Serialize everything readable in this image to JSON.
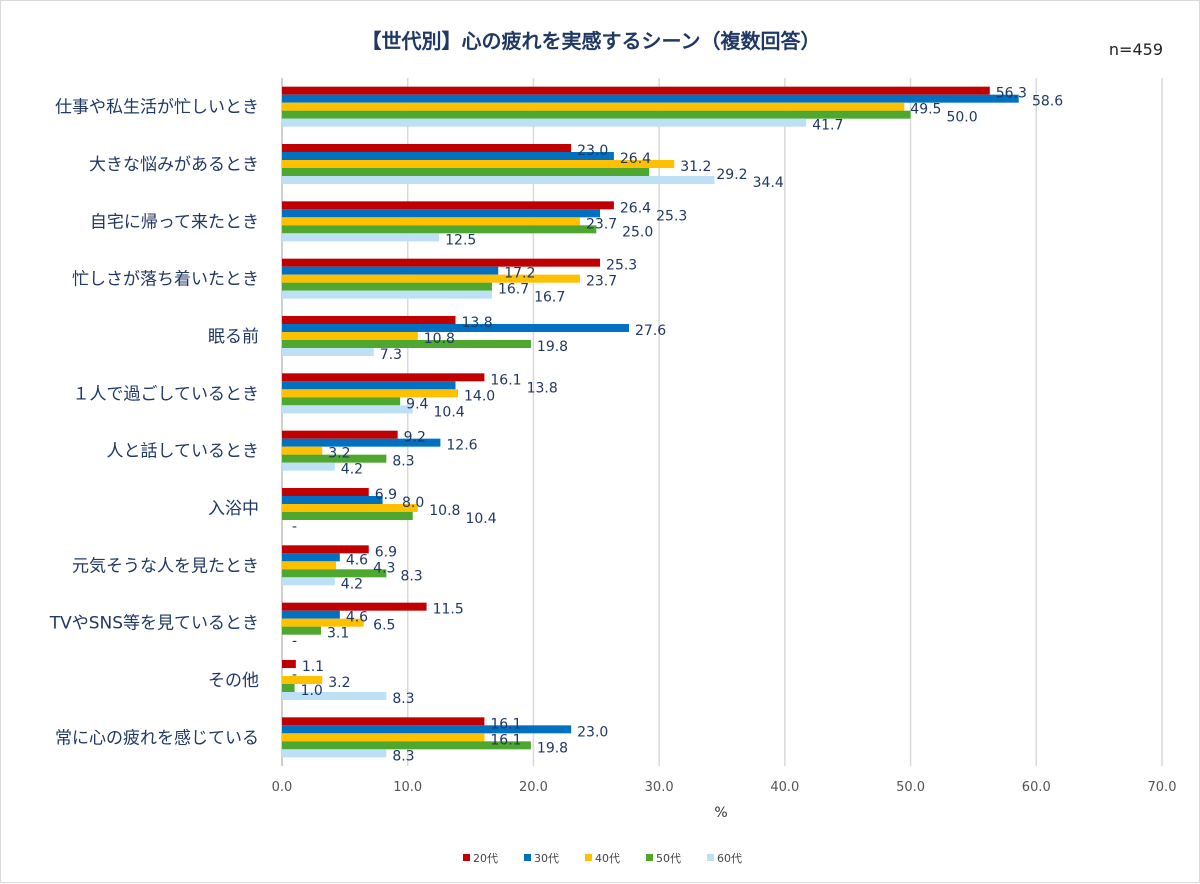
{
  "chart_data": {
    "type": "bar",
    "orientation": "horizontal",
    "title": "【世代別】心の疲れを実感するシーン（複数回答）",
    "annotation": "n=459",
    "xlabel": "%",
    "xlim": [
      0,
      70
    ],
    "xticks": [
      "0.0",
      "10.0",
      "20.0",
      "30.0",
      "40.0",
      "50.0",
      "60.0",
      "70.0"
    ],
    "grid": true,
    "legend_position": "bottom",
    "missing_label": "-",
    "categories": [
      "仕事や私生活が忙しいとき",
      "大きな悩みがあるとき",
      "自宅に帰って来たとき",
      "忙しさが落ち着いたとき",
      "眠る前",
      "１人で過ごしているとき",
      "人と話しているとき",
      "入浴中",
      "元気そうな人を見たとき",
      "TVやSNS等を見ているとき",
      "その他",
      "常に心の疲れを感じている"
    ],
    "series": [
      {
        "name": "20代",
        "color": "#c00000",
        "values": [
          56.3,
          23.0,
          26.4,
          25.3,
          13.8,
          16.1,
          9.2,
          6.9,
          6.9,
          11.5,
          1.1,
          16.1
        ]
      },
      {
        "name": "30代",
        "color": "#0070c0",
        "values": [
          58.6,
          26.4,
          25.3,
          17.2,
          27.6,
          13.8,
          12.6,
          8.0,
          4.6,
          4.6,
          null,
          23.0
        ]
      },
      {
        "name": "40代",
        "color": "#ffc000",
        "values": [
          49.5,
          31.2,
          23.7,
          23.7,
          10.8,
          14.0,
          3.2,
          10.8,
          4.3,
          6.5,
          3.2,
          16.1
        ]
      },
      {
        "name": "50代",
        "color": "#4ea72e",
        "values": [
          50.0,
          29.2,
          25.0,
          16.7,
          19.8,
          9.4,
          8.3,
          10.4,
          8.3,
          3.1,
          1.0,
          19.8
        ]
      },
      {
        "name": "60代",
        "color": "#bde0f5",
        "values": [
          41.7,
          34.4,
          12.5,
          16.7,
          7.3,
          10.4,
          4.2,
          null,
          4.2,
          null,
          8.3,
          8.3
        ]
      }
    ]
  }
}
